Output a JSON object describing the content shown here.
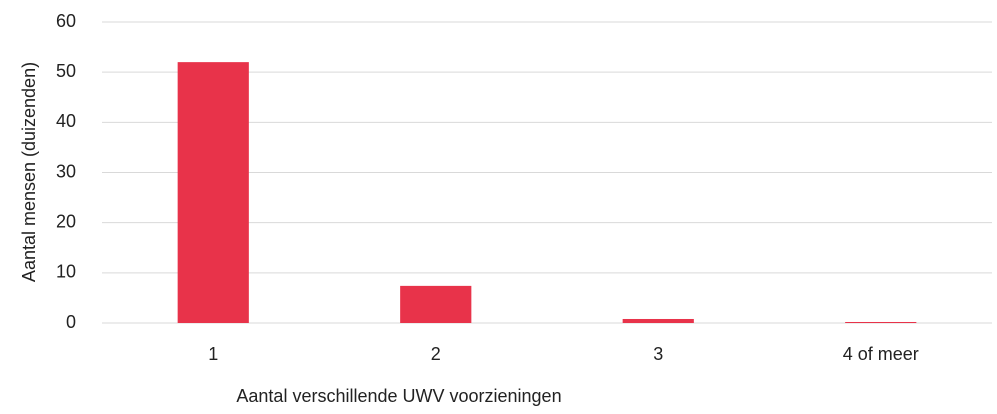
{
  "chart_data": {
    "type": "bar",
    "categories": [
      "1",
      "2",
      "3",
      "4 of meer"
    ],
    "values": [
      52.0,
      7.4,
      0.8,
      0.2
    ],
    "color": "#e8334a",
    "xlabel": "Aantal verschillende UWV voorzieningen",
    "ylabel": "Aantal mensen (duizenden)",
    "ylim": [
      0,
      60
    ],
    "yticks": [
      0,
      10,
      20,
      30,
      40,
      50,
      60
    ],
    "grid": true
  }
}
